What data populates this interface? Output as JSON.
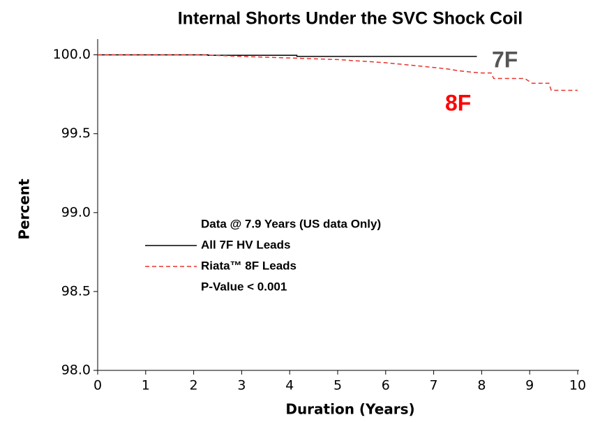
{
  "chart_data": {
    "type": "line",
    "title": "Internal Shorts Under the SVC Shock Coil",
    "x_label": "Duration (Years)",
    "y_label": "Percent",
    "xlim": [
      0,
      10
    ],
    "xticks": [
      0,
      1,
      2,
      3,
      4,
      5,
      6,
      7,
      8,
      9,
      10
    ],
    "ylim": [
      98,
      100.1
    ],
    "yticks": [
      {
        "value": 98,
        "label": "98.0"
      },
      98.5,
      {
        "value": 99,
        "label": "99.0"
      },
      99.5,
      {
        "value": 100,
        "label": "100.0"
      }
    ],
    "grid": false,
    "series": [
      {
        "name": "All 7F HV Leads",
        "color": "#000000",
        "dash": false,
        "x": [
          0,
          2.3,
          2.3,
          4.15,
          4.15,
          7.9
        ],
        "values": [
          100,
          100,
          99.997,
          99.997,
          99.99,
          99.99
        ]
      },
      {
        "name": "Riata™ 8F Leads",
        "color": "#e8322b",
        "dash": true,
        "x": [
          0,
          2.2,
          3,
          4,
          5,
          5.5,
          6,
          6.5,
          7,
          7.3,
          7.5,
          7.8,
          8,
          8.2,
          8.25,
          8.9,
          9.05,
          9.4,
          9.45,
          10
        ],
        "values": [
          100,
          100,
          99.99,
          99.98,
          99.97,
          99.96,
          99.95,
          99.935,
          99.92,
          99.91,
          99.9,
          99.89,
          99.885,
          99.885,
          99.85,
          99.85,
          99.82,
          99.82,
          99.775,
          99.775
        ]
      }
    ],
    "legend_title": "Data @ 7.9 Years (US data Only)",
    "legend_note": "P-Value < 0.001",
    "curve_labels": [
      {
        "text": "7F",
        "color": "#555555"
      },
      {
        "text": "8F",
        "color": "#ff0000"
      }
    ]
  }
}
